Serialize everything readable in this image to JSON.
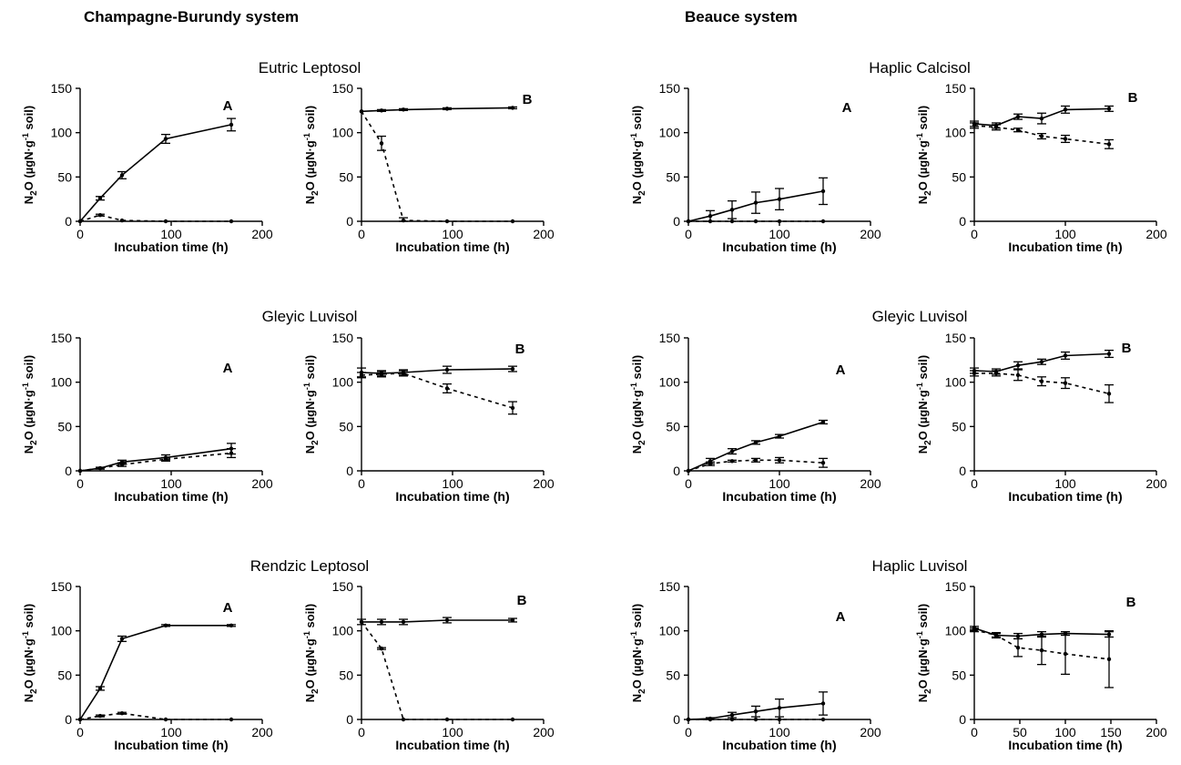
{
  "systems": [
    {
      "title": "Champagne-Burundy system"
    },
    {
      "title": "Beauce system"
    }
  ],
  "soil_titles": [
    "Eutric Leptosol",
    "Haplic Calcisol",
    "Gleyic Luvisol",
    "Gleyic Luvisol",
    "Rendzic Leptosol",
    "Haplic Luvisol"
  ],
  "axis_text": {
    "xlabel": "Incubation time (h)",
    "ylabel": "N2O (µgN·g-1 soil)",
    "ylabel_parts": {
      "n": "N",
      "sub2": "2",
      "o": "O (µgN·g",
      "sup": "-1",
      "tail": " soil)"
    }
  },
  "chart_data": [
    {
      "id": "CB-Eutric-Leptosol-A",
      "type": "line",
      "system": "Champagne-Burundy system",
      "soil": "Eutric Leptosol",
      "panel": "A",
      "xlabel": "Incubation time (h)",
      "ylabel": "N2O (µgN·g-1 soil)",
      "xlim": [
        0,
        200
      ],
      "ylim": [
        0,
        150
      ],
      "xticks": [
        0,
        100,
        200
      ],
      "yticks": [
        0,
        50,
        100,
        150
      ],
      "series": [
        {
          "style": "solid",
          "x": [
            0,
            22,
            46,
            94,
            166
          ],
          "y": [
            0,
            26,
            52,
            93,
            109
          ],
          "err": [
            0,
            2,
            4,
            5,
            7
          ]
        },
        {
          "style": "dashed",
          "x": [
            0,
            22,
            46,
            94,
            166
          ],
          "y": [
            0,
            7,
            1,
            0,
            0
          ],
          "err": [
            0,
            1,
            0,
            0,
            0
          ]
        }
      ]
    },
    {
      "id": "CB-Eutric-Leptosol-B",
      "type": "line",
      "system": "Champagne-Burundy system",
      "soil": "Eutric Leptosol",
      "panel": "B",
      "xlabel": "Incubation time (h)",
      "ylabel": "N2O (µgN·g-1 soil)",
      "xlim": [
        0,
        200
      ],
      "ylim": [
        0,
        150
      ],
      "xticks": [
        0,
        100,
        200
      ],
      "yticks": [
        0,
        50,
        100,
        150
      ],
      "series": [
        {
          "style": "solid",
          "x": [
            0,
            22,
            46,
            94,
            166
          ],
          "y": [
            124,
            125,
            126,
            127,
            128
          ],
          "err": [
            0,
            1,
            1,
            1,
            1
          ]
        },
        {
          "style": "dashed",
          "x": [
            0,
            22,
            46,
            94,
            166
          ],
          "y": [
            124,
            88,
            1,
            0,
            0
          ],
          "err": [
            0,
            8,
            3,
            0,
            0
          ]
        }
      ]
    },
    {
      "id": "B-Haplic-Calcisol-A",
      "type": "line",
      "system": "Beauce system",
      "soil": "Haplic Calcisol",
      "panel": "A",
      "xlabel": "Incubation time (h)",
      "ylabel": "N2O (µgN·g-1 soil)",
      "xlim": [
        0,
        200
      ],
      "ylim": [
        0,
        150
      ],
      "xticks": [
        0,
        100,
        200
      ],
      "yticks": [
        0,
        50,
        100,
        150
      ],
      "series": [
        {
          "style": "solid",
          "x": [
            0,
            24,
            48,
            74,
            100,
            148
          ],
          "y": [
            0,
            6,
            13,
            21,
            25,
            34
          ],
          "err": [
            0,
            6,
            10,
            12,
            12,
            15
          ]
        },
        {
          "style": "dashed",
          "x": [
            0,
            24,
            48,
            74,
            100,
            148
          ],
          "y": [
            0,
            0,
            0,
            0,
            0,
            0
          ],
          "err": [
            0,
            0,
            0,
            0,
            0,
            0
          ]
        }
      ]
    },
    {
      "id": "B-Haplic-Calcisol-B",
      "type": "line",
      "system": "Beauce system",
      "soil": "Haplic Calcisol",
      "panel": "B",
      "xlabel": "Incubation time (h)",
      "ylabel": "N2O (µgN·g-1 soil)",
      "xlim": [
        0,
        200
      ],
      "ylim": [
        0,
        150
      ],
      "xticks": [
        0,
        100,
        200
      ],
      "yticks": [
        0,
        50,
        100,
        150
      ],
      "series": [
        {
          "style": "solid",
          "x": [
            0,
            24,
            48,
            74,
            100,
            148
          ],
          "y": [
            110,
            108,
            118,
            116,
            126,
            127
          ],
          "err": [
            3,
            3,
            3,
            6,
            4,
            3
          ]
        },
        {
          "style": "dashed",
          "x": [
            0,
            24,
            48,
            74,
            100,
            148
          ],
          "y": [
            108,
            106,
            103,
            96,
            93,
            87
          ],
          "err": [
            3,
            3,
            2,
            3,
            4,
            5
          ]
        }
      ]
    },
    {
      "id": "CB-Gleyic-Luvisol-A",
      "type": "line",
      "system": "Champagne-Burundy system",
      "soil": "Gleyic Luvisol",
      "panel": "A",
      "xlabel": "Incubation time (h)",
      "ylabel": "N2O (µgN·g-1 soil)",
      "xlim": [
        0,
        200
      ],
      "ylim": [
        0,
        150
      ],
      "xticks": [
        0,
        100,
        200
      ],
      "yticks": [
        0,
        50,
        100,
        150
      ],
      "series": [
        {
          "style": "solid",
          "x": [
            0,
            22,
            46,
            94,
            166
          ],
          "y": [
            0,
            3,
            10,
            15,
            25
          ],
          "err": [
            0,
            1,
            2,
            3,
            6
          ]
        },
        {
          "style": "dashed",
          "x": [
            0,
            22,
            46,
            94,
            166
          ],
          "y": [
            0,
            3,
            7,
            13,
            20
          ],
          "err": [
            0,
            1,
            2,
            2,
            5
          ]
        }
      ]
    },
    {
      "id": "CB-Gleyic-Luvisol-B",
      "type": "line",
      "system": "Champagne-Burundy system",
      "soil": "Gleyic Luvisol",
      "panel": "B",
      "xlabel": "Incubation time (h)",
      "ylabel": "N2O (µgN·g-1 soil)",
      "xlim": [
        0,
        200
      ],
      "ylim": [
        0,
        150
      ],
      "xticks": [
        0,
        100,
        200
      ],
      "yticks": [
        0,
        50,
        100,
        150
      ],
      "series": [
        {
          "style": "solid",
          "x": [
            0,
            22,
            46,
            94,
            166
          ],
          "y": [
            111,
            110,
            111,
            114,
            115
          ],
          "err": [
            5,
            3,
            3,
            4,
            3
          ]
        },
        {
          "style": "dashed",
          "x": [
            0,
            22,
            46,
            94,
            166
          ],
          "y": [
            108,
            109,
            110,
            93,
            71
          ],
          "err": [
            3,
            3,
            3,
            5,
            7
          ]
        }
      ]
    },
    {
      "id": "B-Gleyic-Luvisol-A",
      "type": "line",
      "system": "Beauce system",
      "soil": "Gleyic Luvisol",
      "panel": "A",
      "xlabel": "Incubation time (h)",
      "ylabel": "N2O (µgN·g-1 soil)",
      "xlim": [
        0,
        200
      ],
      "ylim": [
        0,
        150
      ],
      "xticks": [
        0,
        100,
        200
      ],
      "yticks": [
        0,
        50,
        100,
        150
      ],
      "series": [
        {
          "style": "solid",
          "x": [
            0,
            24,
            48,
            74,
            100,
            148
          ],
          "y": [
            0,
            11,
            22,
            32,
            39,
            55
          ],
          "err": [
            0,
            3,
            3,
            2,
            2,
            2
          ]
        },
        {
          "style": "dashed",
          "x": [
            0,
            24,
            48,
            74,
            100,
            148
          ],
          "y": [
            0,
            8,
            11,
            12,
            12,
            9
          ],
          "err": [
            0,
            2,
            1,
            2,
            3,
            5
          ]
        }
      ]
    },
    {
      "id": "B-Gleyic-Luvisol-B",
      "type": "line",
      "system": "Beauce system",
      "soil": "Gleyic Luvisol",
      "panel": "B",
      "xlabel": "Incubation time (h)",
      "ylabel": "N2O (µgN·g-1 soil)",
      "xlim": [
        0,
        200
      ],
      "ylim": [
        0,
        150
      ],
      "xticks": [
        0,
        100,
        200
      ],
      "yticks": [
        0,
        50,
        100,
        150
      ],
      "series": [
        {
          "style": "solid",
          "x": [
            0,
            24,
            48,
            74,
            100,
            148
          ],
          "y": [
            113,
            112,
            119,
            123,
            130,
            132
          ],
          "err": [
            3,
            3,
            4,
            3,
            4,
            4
          ]
        },
        {
          "style": "dashed",
          "x": [
            0,
            24,
            48,
            74,
            100,
            148
          ],
          "y": [
            110,
            110,
            108,
            101,
            99,
            87
          ],
          "err": [
            3,
            3,
            6,
            5,
            6,
            10
          ]
        }
      ]
    },
    {
      "id": "CB-Rendzic-Leptosol-A",
      "type": "line",
      "system": "Champagne-Burundy system",
      "soil": "Rendzic Leptosol",
      "panel": "A",
      "xlabel": "Incubation time (h)",
      "ylabel": "N2O (µgN·g-1 soil)",
      "xlim": [
        0,
        200
      ],
      "ylim": [
        0,
        150
      ],
      "xticks": [
        0,
        100,
        200
      ],
      "yticks": [
        0,
        50,
        100,
        150
      ],
      "series": [
        {
          "style": "solid",
          "x": [
            0,
            22,
            46,
            94,
            166
          ],
          "y": [
            0,
            35,
            91,
            106,
            106
          ],
          "err": [
            0,
            2,
            3,
            1,
            1
          ]
        },
        {
          "style": "dashed",
          "x": [
            0,
            22,
            46,
            94,
            166
          ],
          "y": [
            0,
            4,
            7,
            0,
            0
          ],
          "err": [
            0,
            1,
            1,
            0,
            0
          ]
        }
      ]
    },
    {
      "id": "CB-Rendzic-Leptosol-B",
      "type": "line",
      "system": "Champagne-Burundy system",
      "soil": "Rendzic Leptosol",
      "panel": "B",
      "xlabel": "Incubation time (h)",
      "ylabel": "N2O (µgN·g-1 soil)",
      "xlim": [
        0,
        200
      ],
      "ylim": [
        0,
        150
      ],
      "xticks": [
        0,
        100,
        200
      ],
      "yticks": [
        0,
        50,
        100,
        150
      ],
      "series": [
        {
          "style": "solid",
          "x": [
            0,
            22,
            46,
            94,
            166
          ],
          "y": [
            110,
            110,
            110,
            112,
            112
          ],
          "err": [
            3,
            3,
            3,
            3,
            2
          ]
        },
        {
          "style": "dashed",
          "x": [
            0,
            22,
            46,
            94,
            166
          ],
          "y": [
            110,
            80,
            0,
            0,
            0
          ],
          "err": [
            0,
            1,
            0,
            0,
            0
          ]
        }
      ]
    },
    {
      "id": "B-Haplic-Luvisol-A",
      "type": "line",
      "system": "Beauce system",
      "soil": "Haplic Luvisol",
      "panel": "A",
      "xlabel": "Incubation time (h)",
      "ylabel": "N2O (µgN·g-1 soil)",
      "xlim": [
        0,
        200
      ],
      "ylim": [
        0,
        150
      ],
      "xticks": [
        0,
        100,
        200
      ],
      "yticks": [
        0,
        50,
        100,
        150
      ],
      "series": [
        {
          "style": "solid",
          "x": [
            0,
            24,
            48,
            74,
            100,
            148
          ],
          "y": [
            0,
            1,
            5,
            9,
            13,
            18
          ],
          "err": [
            0,
            1,
            3,
            6,
            10,
            13
          ]
        },
        {
          "style": "dashed",
          "x": [
            0,
            24,
            48,
            74,
            100,
            148
          ],
          "y": [
            0,
            0,
            0,
            0,
            0,
            0
          ],
          "err": [
            0,
            0,
            0,
            0,
            0,
            0
          ]
        }
      ]
    },
    {
      "id": "B-Haplic-Luvisol-B",
      "type": "line",
      "system": "Beauce system",
      "soil": "Haplic Luvisol",
      "panel": "B",
      "xlabel": "Incubation time (h)",
      "ylabel": "N2O (µgN·g-1 soil)",
      "xlim": [
        0,
        200
      ],
      "ylim": [
        0,
        150
      ],
      "xticks": [
        0,
        50,
        100,
        150,
        200
      ],
      "yticks": [
        0,
        50,
        100,
        150
      ],
      "series": [
        {
          "style": "solid",
          "x": [
            0,
            24,
            48,
            74,
            100,
            148
          ],
          "y": [
            103,
            95,
            94,
            96,
            97,
            96
          ],
          "err": [
            2,
            2,
            3,
            3,
            2,
            3
          ]
        },
        {
          "style": "dashed",
          "x": [
            0,
            24,
            48,
            74,
            100,
            148
          ],
          "y": [
            101,
            95,
            81,
            78,
            74,
            68
          ],
          "err": [
            2,
            3,
            10,
            16,
            23,
            32
          ]
        }
      ]
    }
  ]
}
